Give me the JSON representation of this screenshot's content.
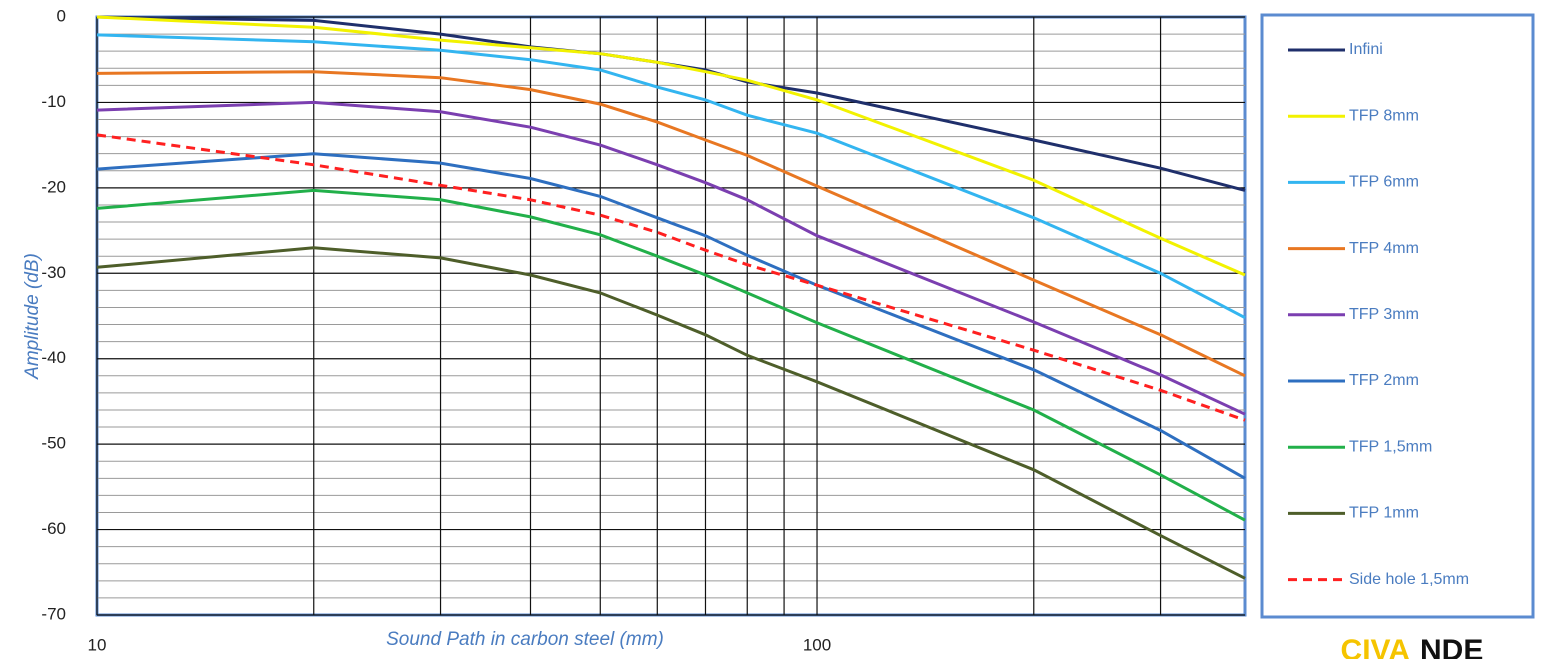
{
  "chart_data": {
    "type": "line",
    "x_label": "Sound Path in carbon steel (mm)",
    "y_label": "Amplitude (dB)",
    "x": [
      10,
      20,
      30,
      40,
      50,
      60,
      70,
      80,
      100,
      200,
      300,
      393
    ],
    "log_x": true,
    "xlim": [
      10,
      393
    ],
    "xticks": [
      10,
      100
    ],
    "x_minor_grid": [
      20,
      30,
      40,
      50,
      60,
      70,
      80,
      90,
      200,
      300
    ],
    "ylim": [
      -70,
      0
    ],
    "yticks": [
      0,
      -10,
      -20,
      -30,
      -40,
      -50,
      -60,
      -70
    ],
    "y_minor_grid": [
      -2,
      -4,
      -6,
      -8,
      -12,
      -14,
      -16,
      -18,
      -22,
      -24,
      -26,
      -28,
      -32,
      -34,
      -36,
      -38,
      -42,
      -44,
      -46,
      -48,
      -52,
      -54,
      -56,
      -58,
      -62,
      -64,
      -66,
      -68
    ],
    "grid": true,
    "legend": "right",
    "series": [
      {
        "name": "Infini",
        "color": "#1f2f6b",
        "values": [
          0,
          -0.4,
          -2,
          -3.5,
          -4.3,
          -5.3,
          -6.2,
          -7.6,
          -8.9,
          -14.4,
          -17.7,
          -20.3
        ]
      },
      {
        "name": "TFP 8mm",
        "color": "#f2f200",
        "values": [
          0,
          -1.2,
          -2.7,
          -3.6,
          -4.3,
          -5.3,
          -6.4,
          -7.4,
          -9.7,
          -19.1,
          -25.9,
          -30.2
        ]
      },
      {
        "name": "TFP 6mm",
        "color": "#33b5f0",
        "values": [
          -2.1,
          -2.9,
          -3.9,
          -5,
          -6.2,
          -8.2,
          -9.7,
          -11.5,
          -13.6,
          -23.5,
          -30,
          -35.2
        ]
      },
      {
        "name": "TFP 4mm",
        "color": "#e87722",
        "values": [
          -6.6,
          -6.4,
          -7.1,
          -8.5,
          -10.2,
          -12.3,
          -14.4,
          -16.2,
          -19.8,
          -30.8,
          -37.2,
          -42
        ]
      },
      {
        "name": "TFP 3mm",
        "color": "#7b3fb0",
        "values": [
          -10.9,
          -10,
          -11.1,
          -12.9,
          -15,
          -17.3,
          -19.4,
          -21.4,
          -25.6,
          -35.7,
          -41.9,
          -46.5
        ]
      },
      {
        "name": "TFP 2mm",
        "color": "#2e6fc0",
        "values": [
          -17.8,
          -16,
          -17.1,
          -18.9,
          -21,
          -23.5,
          -25.6,
          -27.9,
          -31.4,
          -41.3,
          -48.4,
          -54
        ]
      },
      {
        "name": "TFP 1,5mm",
        "color": "#22b04a",
        "values": [
          -22.4,
          -20.3,
          -21.4,
          -23.4,
          -25.5,
          -28,
          -30.2,
          -32.3,
          -35.8,
          -46,
          -53.6,
          -58.9
        ]
      },
      {
        "name": "TFP 1mm",
        "color": "#4e5e2a",
        "values": [
          -29.3,
          -27,
          -28.2,
          -30.2,
          -32.3,
          -34.9,
          -37.2,
          -39.6,
          -42.7,
          -53,
          -60.7,
          -65.7
        ]
      },
      {
        "name": "Side hole 1,5mm",
        "color": "#ff2020",
        "dash": true,
        "values": [
          -13.8,
          -17.3,
          -19.7,
          -21.4,
          -23.2,
          -25.2,
          -27.3,
          -29,
          -31.4,
          -39,
          -43.7,
          -47.2
        ]
      }
    ]
  },
  "logo": {
    "left": "CIVA",
    "right": "NDE"
  }
}
